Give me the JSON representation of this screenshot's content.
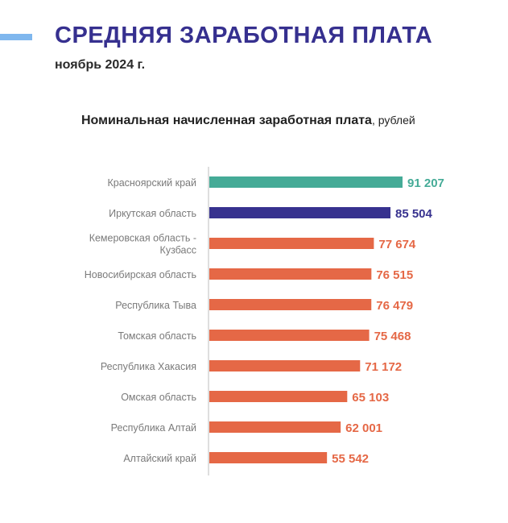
{
  "header": {
    "title": "СРЕДНЯЯ ЗАРАБОТНАЯ ПЛАТА",
    "subtitle": "ноябрь 2024 г."
  },
  "chart_data": {
    "type": "bar",
    "orientation": "horizontal",
    "title_bold": "Номинальная начисленная заработная плата",
    "title_unit": ", рублей",
    "categories": [
      "Красноярский край",
      "Иркутская область",
      "Кемеровская область - Кузбасс",
      "Новосибирская область",
      "Республика Тыва",
      "Томская область",
      "Республика Хакасия",
      "Омская область",
      "Республика Алтай",
      "Алтайский край"
    ],
    "category_lines": [
      [
        "Красноярский край"
      ],
      [
        "Иркутская область"
      ],
      [
        "Кемеровская область -",
        "Кузбасс"
      ],
      [
        "Новосибирская область"
      ],
      [
        "Республика Тыва"
      ],
      [
        "Томская область"
      ],
      [
        "Республика Хакасия"
      ],
      [
        "Омская область"
      ],
      [
        "Республика Алтай"
      ],
      [
        "Алтайский край"
      ]
    ],
    "values": [
      91207,
      85504,
      77674,
      76515,
      76479,
      75468,
      71172,
      65103,
      62001,
      55542
    ],
    "data_labels": [
      "91 207",
      "85 504",
      "77 674",
      "76 515",
      "76 479",
      "75 468",
      "71 172",
      "65 103",
      "62 001",
      "55 542"
    ],
    "colors": [
      "#45ab97",
      "#37328f",
      "#e56846",
      "#e56846",
      "#e56846",
      "#e56846",
      "#e56846",
      "#e56846",
      "#e56846",
      "#e56846"
    ],
    "grid": false,
    "legend": "none"
  }
}
